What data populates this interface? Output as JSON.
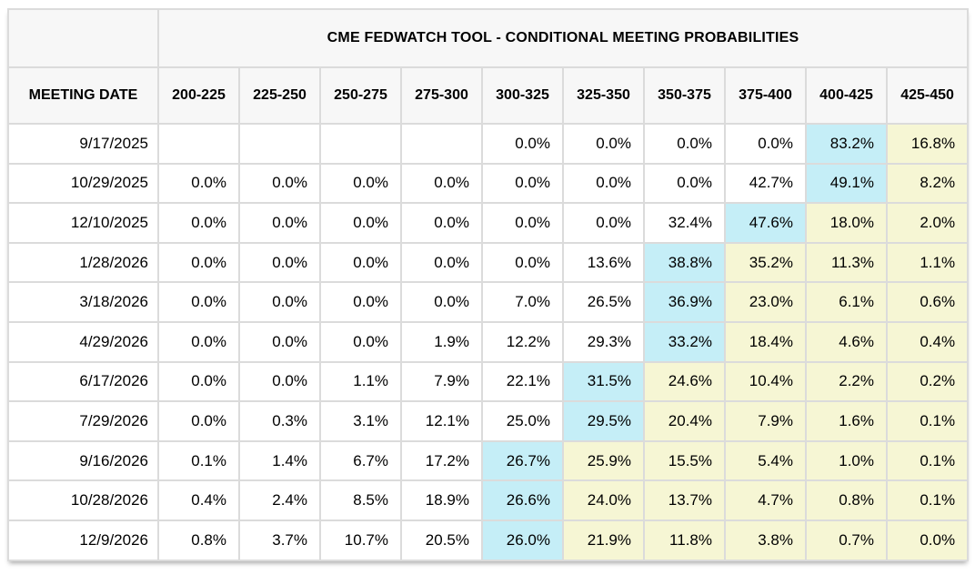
{
  "header": {
    "title": "CME FEDWATCH TOOL - CONDITIONAL MEETING PROBABILITIES",
    "corner_label": "MEETING DATE"
  },
  "colors": {
    "highlight_mode_cyan": "#c5eef7",
    "highlight_above_yellow": "#f6f6d4",
    "header_background": "#f7f7f7",
    "grid_line": "#dbdbdb",
    "text": "#000000"
  },
  "chart_data": {
    "type": "table",
    "title": "CME FEDWATCH TOOL - CONDITIONAL MEETING PROBABILITIES",
    "value_unit": "percent",
    "columns": [
      "MEETING DATE",
      "200-225",
      "225-250",
      "250-275",
      "275-300",
      "300-325",
      "325-350",
      "350-375",
      "375-400",
      "400-425",
      "425-450"
    ],
    "cell_style_legend": {
      "p": "plain white cell",
      "c": "cyan highlight (highest probability in row)",
      "y": "yellow highlight (ranges above modal range)",
      "": "empty cell"
    },
    "rows": [
      {
        "date": "9/17/2025",
        "values": [
          null,
          null,
          null,
          null,
          0.0,
          0.0,
          0.0,
          0.0,
          83.2,
          16.8
        ],
        "styles": [
          "",
          "",
          "",
          "",
          "p",
          "p",
          "p",
          "p",
          "c",
          "y"
        ]
      },
      {
        "date": "10/29/2025",
        "values": [
          0.0,
          0.0,
          0.0,
          0.0,
          0.0,
          0.0,
          0.0,
          42.7,
          49.1,
          8.2
        ],
        "styles": [
          "p",
          "p",
          "p",
          "p",
          "p",
          "p",
          "p",
          "p",
          "c",
          "y"
        ]
      },
      {
        "date": "12/10/2025",
        "values": [
          0.0,
          0.0,
          0.0,
          0.0,
          0.0,
          0.0,
          32.4,
          47.6,
          18.0,
          2.0
        ],
        "styles": [
          "p",
          "p",
          "p",
          "p",
          "p",
          "p",
          "p",
          "c",
          "y",
          "y"
        ]
      },
      {
        "date": "1/28/2026",
        "values": [
          0.0,
          0.0,
          0.0,
          0.0,
          0.0,
          13.6,
          38.8,
          35.2,
          11.3,
          1.1
        ],
        "styles": [
          "p",
          "p",
          "p",
          "p",
          "p",
          "p",
          "c",
          "y",
          "y",
          "y"
        ]
      },
      {
        "date": "3/18/2026",
        "values": [
          0.0,
          0.0,
          0.0,
          0.0,
          7.0,
          26.5,
          36.9,
          23.0,
          6.1,
          0.6
        ],
        "styles": [
          "p",
          "p",
          "p",
          "p",
          "p",
          "p",
          "c",
          "y",
          "y",
          "y"
        ]
      },
      {
        "date": "4/29/2026",
        "values": [
          0.0,
          0.0,
          0.0,
          1.9,
          12.2,
          29.3,
          33.2,
          18.4,
          4.6,
          0.4
        ],
        "styles": [
          "p",
          "p",
          "p",
          "p",
          "p",
          "p",
          "c",
          "y",
          "y",
          "y"
        ]
      },
      {
        "date": "6/17/2026",
        "values": [
          0.0,
          0.0,
          1.1,
          7.9,
          22.1,
          31.5,
          24.6,
          10.4,
          2.2,
          0.2
        ],
        "styles": [
          "p",
          "p",
          "p",
          "p",
          "p",
          "c",
          "y",
          "y",
          "y",
          "y"
        ]
      },
      {
        "date": "7/29/2026",
        "values": [
          0.0,
          0.3,
          3.1,
          12.1,
          25.0,
          29.5,
          20.4,
          7.9,
          1.6,
          0.1
        ],
        "styles": [
          "p",
          "p",
          "p",
          "p",
          "p",
          "c",
          "y",
          "y",
          "y",
          "y"
        ]
      },
      {
        "date": "9/16/2026",
        "values": [
          0.1,
          1.4,
          6.7,
          17.2,
          26.7,
          25.9,
          15.5,
          5.4,
          1.0,
          0.1
        ],
        "styles": [
          "p",
          "p",
          "p",
          "p",
          "c",
          "y",
          "y",
          "y",
          "y",
          "y"
        ]
      },
      {
        "date": "10/28/2026",
        "values": [
          0.4,
          2.4,
          8.5,
          18.9,
          26.6,
          24.0,
          13.7,
          4.7,
          0.8,
          0.1
        ],
        "styles": [
          "p",
          "p",
          "p",
          "p",
          "c",
          "y",
          "y",
          "y",
          "y",
          "y"
        ]
      },
      {
        "date": "12/9/2026",
        "values": [
          0.8,
          3.7,
          10.7,
          20.5,
          26.0,
          21.9,
          11.8,
          3.8,
          0.7,
          0.0
        ],
        "styles": [
          "p",
          "p",
          "p",
          "p",
          "c",
          "y",
          "y",
          "y",
          "y",
          "y"
        ]
      }
    ]
  }
}
